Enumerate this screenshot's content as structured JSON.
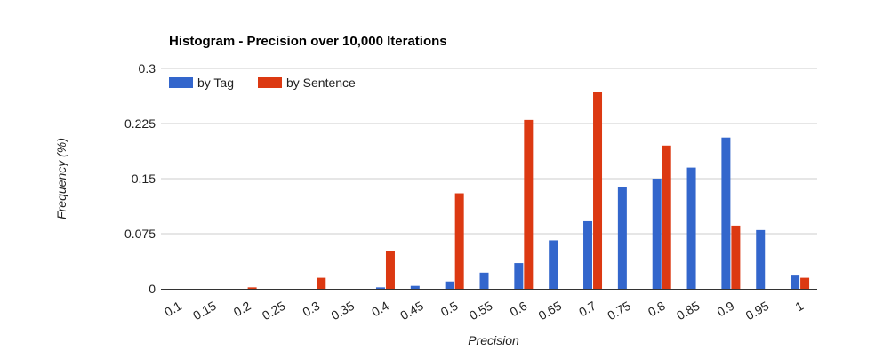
{
  "chart_data": {
    "type": "bar",
    "title": "Histogram - Precision over 10,000 Iterations",
    "xlabel": "Precision",
    "ylabel": "Frequency (%)",
    "ylim": [
      0,
      0.3
    ],
    "yticks": [
      "0",
      "0.075",
      "0.15",
      "0.225",
      "0.3"
    ],
    "ytick_values": [
      0,
      0.075,
      0.15,
      0.225,
      0.3
    ],
    "grid": true,
    "legend_position": "top-left",
    "categories": [
      "0.1",
      "0.15",
      "0.2",
      "0.25",
      "0.3",
      "0.35",
      "0.4",
      "0.45",
      "0.5",
      "0.55",
      "0.6",
      "0.65",
      "0.7",
      "0.75",
      "0.8",
      "0.85",
      "0.9",
      "0.95",
      "1"
    ],
    "series": [
      {
        "name": "by Tag",
        "color": "#3366cc",
        "values": [
          0,
          0,
          0,
          0,
          0,
          0,
          0.002,
          0.004,
          0.01,
          0.022,
          0.035,
          0.066,
          0.092,
          0.138,
          0.15,
          0.165,
          0.206,
          0.08,
          0.018
        ]
      },
      {
        "name": "by Sentence",
        "color": "#dc3912",
        "values": [
          0,
          0,
          0.002,
          0,
          0.015,
          0,
          0.051,
          0,
          0.13,
          0,
          0.23,
          0,
          0.268,
          0,
          0.195,
          0,
          0.086,
          0,
          0.015
        ]
      }
    ]
  }
}
